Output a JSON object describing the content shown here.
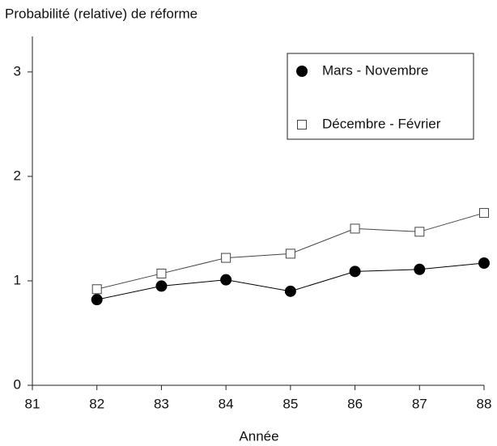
{
  "chart_data": {
    "type": "line",
    "title": "Probabilité (relative) de réforme",
    "x_label": "Année",
    "x": [
      82,
      83,
      84,
      85,
      86,
      87,
      88
    ],
    "series": [
      {
        "name": "Mars - Novembre",
        "color": "#000000",
        "marker": "filled-circle",
        "values": [
          0.82,
          0.95,
          1.01,
          0.9,
          1.09,
          1.11,
          1.17
        ]
      },
      {
        "name": "Décembre - Février",
        "color": "#444444",
        "marker": "open-square",
        "values": [
          0.92,
          1.07,
          1.22,
          1.26,
          1.5,
          1.47,
          1.65
        ]
      }
    ],
    "xlim": [
      81,
      88
    ],
    "xticks": [
      81,
      82,
      83,
      84,
      85,
      86,
      87,
      88
    ],
    "ylim": [
      0,
      3.34
    ],
    "yticks": [
      0,
      1,
      2,
      3
    ],
    "grid": false,
    "legend": "upper right"
  }
}
